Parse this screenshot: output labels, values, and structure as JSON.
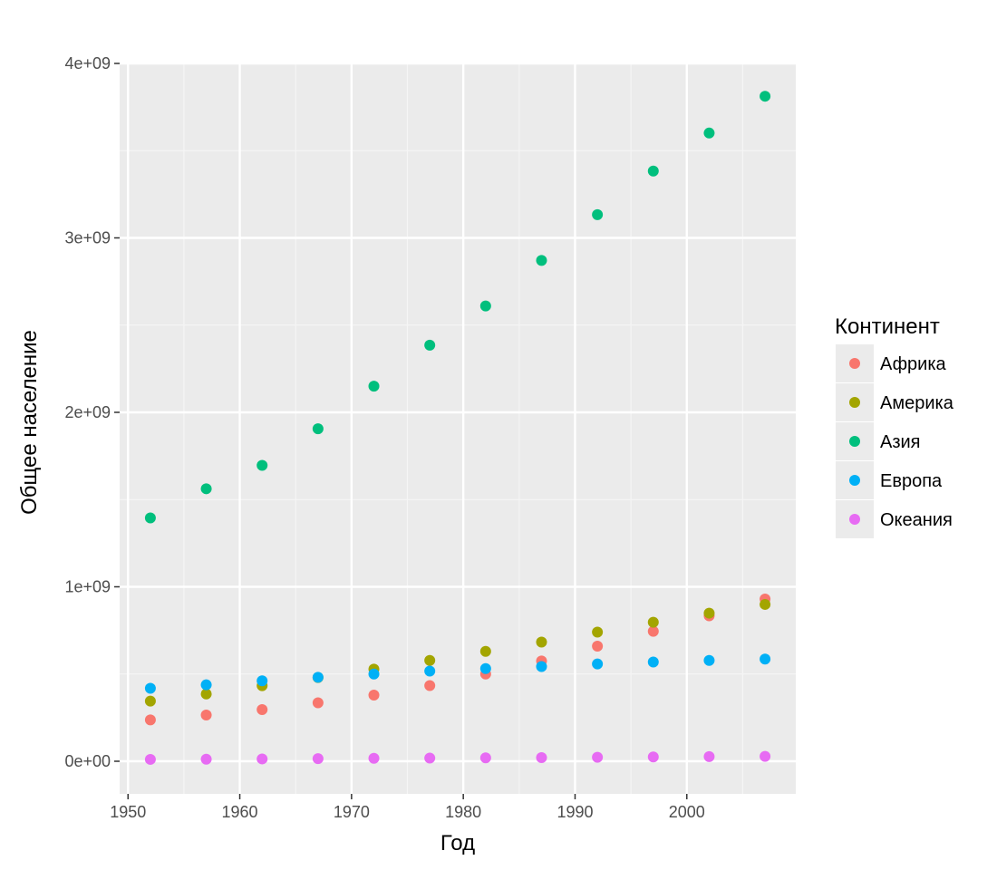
{
  "chart_data": {
    "type": "scatter",
    "title": "",
    "xlabel": "Год",
    "ylabel": "Общее население",
    "xlim": [
      1949.25,
      2009.75
    ],
    "ylim": [
      -200000000,
      4000000000
    ],
    "x_ticks": [
      1950,
      1960,
      1970,
      1980,
      1990,
      2000
    ],
    "x_tick_labels": [
      "1950",
      "1960",
      "1970",
      "1980",
      "1990",
      "2000"
    ],
    "y_ticks": [
      0,
      1000000000,
      2000000000,
      3000000000,
      4000000000
    ],
    "y_tick_labels": [
      "0e+00",
      "1e+09",
      "2e+09",
      "3e+09",
      "4e+09"
    ],
    "grid": true,
    "legend": {
      "title": "Континент",
      "position": "right"
    },
    "x": [
      1952,
      1957,
      1962,
      1967,
      1972,
      1977,
      1982,
      1987,
      1992,
      1997,
      2002,
      2007
    ],
    "series": [
      {
        "name": "Африка",
        "color": "#F8766D",
        "values": [
          237000000,
          265000000,
          296000000,
          335000000,
          379000000,
          434000000,
          500000000,
          575000000,
          660000000,
          745000000,
          834000000,
          930000000
        ]
      },
      {
        "name": "Америка",
        "color": "#A3A500",
        "values": [
          345000000,
          386000000,
          433000000,
          480000000,
          528000000,
          578000000,
          630000000,
          683000000,
          740000000,
          797000000,
          849000000,
          899000000
        ]
      },
      {
        "name": "Азия",
        "color": "#00BF7D",
        "values": [
          1395000000,
          1562000000,
          1696000000,
          1906000000,
          2150000000,
          2385000000,
          2610000000,
          2871000000,
          3133000000,
          3383000000,
          3601000000,
          3812000000
        ]
      },
      {
        "name": "Европа",
        "color": "#00B0F6",
        "values": [
          418000000,
          438000000,
          461000000,
          481000000,
          500000000,
          517000000,
          531000000,
          543000000,
          558000000,
          569000000,
          578000000,
          586000000
        ]
      },
      {
        "name": "Океания",
        "color": "#E76BF3",
        "values": [
          10700000,
          11900000,
          13300000,
          15000000,
          16800000,
          18000000,
          19300000,
          20900000,
          22900000,
          24700000,
          26500000,
          28000000
        ]
      }
    ]
  }
}
